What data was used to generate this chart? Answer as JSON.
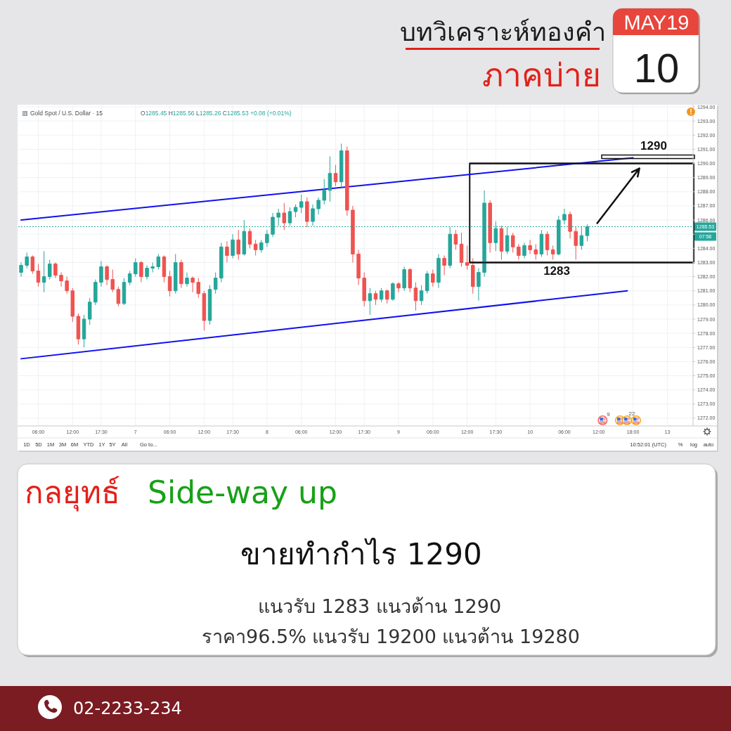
{
  "chart_data": {
    "type": "candlestick",
    "title": "บทวิเคราะห์ทองคำ",
    "subtitle": "ภาคบ่าย",
    "categories": [
      null,
      null,
      null,
      "06:00",
      null,
      null,
      null,
      null,
      null,
      "12:00",
      null,
      null,
      null,
      null,
      "17:30",
      null,
      null,
      null,
      null,
      null,
      "7",
      null,
      null,
      null,
      null,
      null,
      "06:00",
      null,
      null,
      null,
      null,
      null,
      "12:00",
      null,
      null,
      null,
      null,
      "17:30",
      null,
      null,
      null,
      null,
      null,
      "8",
      null,
      null,
      null,
      null,
      null,
      "06:00",
      null,
      null,
      null,
      null,
      null,
      "12:00",
      null,
      null,
      null,
      null,
      "17:30",
      null,
      null,
      null,
      null,
      null,
      "9",
      null,
      null,
      null,
      null,
      null,
      "06:00",
      null,
      null,
      null,
      null,
      null,
      "12:00",
      null,
      null,
      null,
      null,
      "17:30",
      null,
      null,
      null,
      null,
      null,
      "10",
      null,
      null,
      null,
      null,
      null,
      "06:00",
      null,
      null,
      null,
      null,
      null,
      "12:00",
      null,
      null,
      null,
      null,
      null,
      "18:00",
      null,
      null,
      null,
      null,
      null,
      "13",
      null,
      null,
      null,
      null
    ],
    "ohlc": [
      [
        1282.3,
        1283.0,
        1282.0,
        1282.8
      ],
      [
        1282.8,
        1283.7,
        1282.6,
        1283.4
      ],
      [
        1283.4,
        1283.5,
        1282.2,
        1282.4
      ],
      [
        1282.4,
        1282.9,
        1281.3,
        1281.6
      ],
      [
        1281.6,
        1283.8,
        1280.9,
        1282.0
      ],
      [
        1282.0,
        1283.2,
        1281.8,
        1282.9
      ],
      [
        1282.9,
        1283.0,
        1281.9,
        1282.1
      ],
      [
        1282.1,
        1282.3,
        1281.3,
        1281.7
      ],
      [
        1281.7,
        1282.0,
        1280.8,
        1281.0
      ],
      [
        1281.0,
        1281.2,
        1278.8,
        1279.2
      ],
      [
        1279.2,
        1279.4,
        1277.2,
        1277.6
      ],
      [
        1277.6,
        1279.3,
        1277.0,
        1279.0
      ],
      [
        1279.0,
        1280.5,
        1278.6,
        1280.2
      ],
      [
        1280.2,
        1281.8,
        1280.0,
        1281.6
      ],
      [
        1281.6,
        1283.1,
        1281.3,
        1282.7
      ],
      [
        1282.7,
        1282.8,
        1281.4,
        1281.8
      ],
      [
        1281.8,
        1282.5,
        1280.9,
        1281.1
      ],
      [
        1281.1,
        1281.3,
        1279.9,
        1280.1
      ],
      [
        1280.1,
        1281.9,
        1280.0,
        1281.6
      ],
      [
        1281.6,
        1282.4,
        1281.4,
        1282.2
      ],
      [
        1282.2,
        1283.3,
        1282.0,
        1283.0
      ],
      [
        1283.0,
        1283.1,
        1281.6,
        1282.0
      ],
      [
        1282.0,
        1282.8,
        1281.8,
        1282.6
      ],
      [
        1282.6,
        1283.0,
        1282.3,
        1282.7
      ],
      [
        1282.7,
        1283.6,
        1282.5,
        1283.4
      ],
      [
        1283.4,
        1283.5,
        1281.6,
        1282.0
      ],
      [
        1282.0,
        1282.4,
        1280.6,
        1281.0
      ],
      [
        1281.0,
        1283.6,
        1280.8,
        1283.0
      ],
      [
        1283.0,
        1283.2,
        1281.2,
        1281.5
      ],
      [
        1281.5,
        1282.3,
        1281.3,
        1281.9
      ],
      [
        1281.9,
        1282.0,
        1280.9,
        1281.6
      ],
      [
        1281.6,
        1281.9,
        1280.5,
        1280.8
      ],
      [
        1280.8,
        1281.0,
        1278.2,
        1278.9
      ],
      [
        1278.9,
        1281.4,
        1278.6,
        1281.1
      ],
      [
        1281.1,
        1282.3,
        1280.8,
        1281.9
      ],
      [
        1281.9,
        1284.4,
        1281.6,
        1284.1
      ],
      [
        1284.1,
        1284.5,
        1283.0,
        1283.5
      ],
      [
        1283.5,
        1285.0,
        1283.3,
        1284.6
      ],
      [
        1284.6,
        1285.3,
        1283.2,
        1283.6
      ],
      [
        1283.6,
        1286.0,
        1283.5,
        1285.2
      ],
      [
        1285.2,
        1285.4,
        1284.0,
        1284.3
      ],
      [
        1284.3,
        1284.6,
        1283.5,
        1283.9
      ],
      [
        1283.9,
        1284.6,
        1283.7,
        1284.4
      ],
      [
        1284.4,
        1285.3,
        1284.1,
        1285.0
      ],
      [
        1285.0,
        1286.5,
        1284.8,
        1286.2
      ],
      [
        1286.2,
        1286.8,
        1285.6,
        1286.5
      ],
      [
        1286.5,
        1287.2,
        1285.3,
        1285.8
      ],
      [
        1285.8,
        1286.9,
        1285.6,
        1286.6
      ],
      [
        1286.6,
        1287.1,
        1286.2,
        1286.9
      ],
      [
        1286.9,
        1287.8,
        1286.5,
        1287.3
      ],
      [
        1287.3,
        1287.6,
        1285.5,
        1285.9
      ],
      [
        1285.9,
        1287.1,
        1285.6,
        1286.8
      ],
      [
        1286.8,
        1287.6,
        1286.4,
        1287.4
      ],
      [
        1287.4,
        1288.9,
        1287.1,
        1288.1
      ],
      [
        1288.1,
        1290.5,
        1287.3,
        1289.3
      ],
      [
        1289.3,
        1289.9,
        1288.4,
        1288.7
      ],
      [
        1288.7,
        1291.4,
        1288.3,
        1290.9
      ],
      [
        1290.9,
        1291.2,
        1286.3,
        1286.7
      ],
      [
        1286.7,
        1287.0,
        1283.0,
        1283.6
      ],
      [
        1283.6,
        1283.9,
        1281.4,
        1281.9
      ],
      [
        1281.9,
        1282.3,
        1279.9,
        1280.3
      ],
      [
        1280.3,
        1281.2,
        1279.3,
        1280.8
      ],
      [
        1280.8,
        1281.0,
        1280.0,
        1280.4
      ],
      [
        1280.4,
        1281.2,
        1280.2,
        1281.0
      ],
      [
        1281.0,
        1281.1,
        1280.1,
        1280.4
      ],
      [
        1280.4,
        1281.6,
        1280.3,
        1281.5
      ],
      [
        1281.5,
        1281.6,
        1280.9,
        1281.2
      ],
      [
        1281.2,
        1282.7,
        1281.0,
        1282.5
      ],
      [
        1282.5,
        1282.6,
        1280.9,
        1281.2
      ],
      [
        1281.2,
        1281.6,
        1279.6,
        1280.3
      ],
      [
        1280.3,
        1281.4,
        1280.0,
        1281.0
      ],
      [
        1281.0,
        1282.4,
        1280.8,
        1282.2
      ],
      [
        1282.2,
        1282.5,
        1281.3,
        1281.6
      ],
      [
        1281.6,
        1283.6,
        1281.2,
        1283.3
      ],
      [
        1283.3,
        1283.5,
        1282.1,
        1282.8
      ],
      [
        1282.8,
        1285.5,
        1282.6,
        1285.0
      ],
      [
        1285.0,
        1285.3,
        1283.9,
        1284.3
      ],
      [
        1284.3,
        1285.1,
        1282.7,
        1283.0
      ],
      [
        1283.0,
        1284.2,
        1282.5,
        1282.8
      ],
      [
        1282.8,
        1283.3,
        1280.8,
        1281.3
      ],
      [
        1281.3,
        1282.6,
        1280.3,
        1282.3
      ],
      [
        1282.3,
        1288.1,
        1282.0,
        1287.2
      ],
      [
        1287.2,
        1287.4,
        1283.7,
        1284.4
      ],
      [
        1284.4,
        1285.9,
        1283.8,
        1285.4
      ],
      [
        1285.4,
        1285.6,
        1283.2,
        1283.8
      ],
      [
        1283.8,
        1285.5,
        1283.6,
        1284.9
      ],
      [
        1284.9,
        1285.1,
        1283.7,
        1284.1
      ],
      [
        1284.1,
        1284.3,
        1283.2,
        1283.5
      ],
      [
        1283.5,
        1284.4,
        1283.3,
        1284.2
      ],
      [
        1284.2,
        1284.6,
        1283.6,
        1283.9
      ],
      [
        1283.9,
        1284.3,
        1283.2,
        1283.6
      ],
      [
        1283.6,
        1285.3,
        1283.4,
        1285.0
      ],
      [
        1285.0,
        1285.2,
        1283.5,
        1283.9
      ],
      [
        1283.9,
        1284.2,
        1283.2,
        1283.6
      ],
      [
        1283.6,
        1286.3,
        1283.5,
        1286.0
      ],
      [
        1286.0,
        1286.8,
        1285.7,
        1286.4
      ],
      [
        1286.4,
        1286.6,
        1284.7,
        1285.2
      ],
      [
        1285.2,
        1285.5,
        1283.2,
        1284.2
      ],
      [
        1284.2,
        1285.5,
        1283.9,
        1284.9
      ],
      [
        1284.9,
        1285.7,
        1284.5,
        1285.53
      ],
      null,
      null,
      null,
      null,
      null,
      null,
      null,
      null,
      null,
      null,
      null,
      null,
      null,
      null,
      null,
      null,
      null,
      null
    ],
    "colors": [
      "#26a69a",
      "#26a69a",
      "#ef5350",
      "#ef5350",
      "#26a69a",
      "#26a69a",
      "#ef5350",
      "#ef5350",
      "#ef5350",
      "#ef5350",
      "#ef5350",
      "#26a69a",
      "#26a69a",
      "#26a69a",
      "#26a69a",
      "#ef5350",
      "#ef5350",
      "#ef5350",
      "#26a69a",
      "#26a69a",
      "#26a69a",
      "#ef5350",
      "#26a69a",
      "#26a69a",
      "#26a69a",
      "#ef5350",
      "#ef5350",
      "#26a69a",
      "#ef5350",
      "#26a69a",
      "#ef5350",
      "#ef5350",
      "#ef5350",
      "#26a69a",
      "#26a69a",
      "#26a69a",
      "#ef5350",
      "#26a69a",
      "#ef5350",
      "#26a69a",
      "#ef5350",
      "#ef5350",
      "#26a69a",
      "#26a69a",
      "#26a69a",
      "#26a69a",
      "#ef5350",
      "#26a69a",
      "#26a69a",
      "#26a69a",
      "#ef5350",
      "#26a69a",
      "#26a69a",
      "#26a69a",
      "#26a69a",
      "#ef5350",
      "#26a69a",
      "#ef5350",
      "#ef5350",
      "#ef5350",
      "#ef5350",
      "#26a69a",
      "#ef5350",
      "#26a69a",
      "#ef5350",
      "#26a69a",
      "#ef5350",
      "#26a69a",
      "#ef5350",
      "#ef5350",
      "#26a69a",
      "#26a69a",
      "#ef5350",
      "#26a69a",
      "#ef5350",
      "#26a69a",
      "#ef5350",
      "#ef5350",
      "#ef5350",
      "#ef5350",
      "#26a69a",
      "#26a69a",
      "#ef5350",
      "#26a69a",
      "#ef5350",
      "#26a69a",
      "#ef5350",
      "#ef5350",
      "#26a69a",
      "#ef5350",
      "#ef5350",
      "#26a69a",
      "#ef5350",
      "#ef5350",
      "#26a69a",
      "#26a69a",
      "#ef5350",
      "#ef5350",
      "#26a69a",
      "#26a69a",
      null,
      null,
      null,
      null,
      null,
      null,
      null,
      null,
      null,
      null,
      null,
      null,
      null,
      null,
      null,
      null,
      null,
      null
    ],
    "series": [
      {
        "type": "line",
        "color": "#1010f0",
        "values": [
          1286.0,
          null,
          null,
          null,
          null,
          null,
          null,
          null,
          null,
          null,
          null,
          null,
          null,
          null,
          null,
          null,
          null,
          null,
          null,
          null,
          null,
          null,
          null,
          null,
          null,
          null,
          null,
          null,
          null,
          null,
          null,
          null,
          null,
          null,
          null,
          null,
          null,
          null,
          null,
          null,
          null,
          null,
          null,
          null,
          null,
          null,
          null,
          null,
          null,
          null,
          null,
          null,
          null,
          null,
          null,
          null,
          null,
          null,
          null,
          null,
          null,
          null,
          null,
          null,
          null,
          null,
          null,
          null,
          null,
          null,
          null,
          null,
          null,
          null,
          null,
          null,
          null,
          null,
          null,
          null,
          null,
          null,
          null,
          null,
          null,
          null,
          null,
          null,
          null,
          null,
          null,
          null,
          null,
          null,
          null,
          null,
          null,
          null,
          null,
          null,
          null,
          null,
          null,
          null,
          null,
          null,
          null,
          1290.4,
          null,
          null,
          null,
          null,
          null,
          null,
          null,
          null,
          null,
          null
        ]
      },
      {
        "type": "line",
        "color": "#1010f0",
        "values": [
          1276.2,
          null,
          null,
          null,
          null,
          null,
          null,
          null,
          null,
          null,
          null,
          null,
          null,
          null,
          null,
          null,
          null,
          null,
          null,
          null,
          null,
          null,
          null,
          null,
          null,
          null,
          null,
          null,
          null,
          null,
          null,
          null,
          null,
          null,
          null,
          null,
          null,
          null,
          null,
          null,
          null,
          null,
          null,
          null,
          null,
          null,
          null,
          null,
          null,
          null,
          null,
          null,
          null,
          null,
          null,
          null,
          null,
          null,
          null,
          null,
          null,
          null,
          null,
          null,
          null,
          null,
          null,
          null,
          null,
          null,
          null,
          null,
          null,
          null,
          null,
          null,
          null,
          null,
          null,
          null,
          null,
          null,
          null,
          null,
          null,
          null,
          null,
          null,
          null,
          null,
          null,
          null,
          null,
          null,
          null,
          null,
          null,
          null,
          null,
          null,
          null,
          null,
          null,
          null,
          null,
          null,
          1281.0,
          null,
          null,
          null,
          null,
          null,
          null,
          null,
          null,
          null,
          null,
          null
        ]
      }
    ],
    "ylim": [
      1271.45,
      1294.1
    ],
    "yticks": [
      {
        "value": 1272,
        "label": "1272.00"
      },
      {
        "value": 1273,
        "label": "1273.00"
      },
      {
        "value": 1274,
        "label": "1274.00"
      },
      {
        "value": 1275,
        "label": "1275.00"
      },
      {
        "value": 1276,
        "label": "1276.00"
      },
      {
        "value": 1277,
        "label": "1277.00"
      },
      {
        "value": 1278,
        "label": "1278.00"
      },
      {
        "value": 1279,
        "label": "1279.00"
      },
      {
        "value": 1280,
        "label": "1280.00"
      },
      {
        "value": 1281,
        "label": "1281.00"
      },
      {
        "value": 1282,
        "label": "1282.00"
      },
      {
        "value": 1283,
        "label": "1283.00"
      },
      {
        "value": 1284,
        "label": "1284.00"
      },
      {
        "value": 1285,
        "label": null
      },
      {
        "value": 1286,
        "label": "1286.00"
      },
      {
        "value": 1287,
        "label": "1287.00"
      },
      {
        "value": 1288,
        "label": "1288.00"
      },
      {
        "value": 1289,
        "label": "1289.00"
      },
      {
        "value": 1290,
        "label": "1290.00"
      },
      {
        "value": 1291,
        "label": "1291.00"
      },
      {
        "value": 1292,
        "label": "1292.00"
      },
      {
        "value": 1293,
        "label": "1293.00"
      },
      {
        "value": 1294,
        "label": "1294.00"
      }
    ],
    "grid": true,
    "ref_lines": [
      {
        "axis": "y",
        "value": 1285.53,
        "label": "1285.53",
        "color": "#26a69a",
        "line_style": "dotted"
      },
      {
        "axis": "y",
        "value": 1290,
        "label": "1290",
        "color": "#111111"
      },
      {
        "axis": "y",
        "value": 1283,
        "label": "1283",
        "color": "#111111"
      }
    ],
    "annotations": [
      "MAY19",
      "10",
      "Gold Spot / U.S. Dollar · 15",
      "O1285.45 H1285.56 L1285.26 C1285.53 +0.08 (+0.01%)",
      "07:58",
      "9",
      "22",
      "1D",
      "5D",
      "1M",
      "3M",
      "6M",
      "YTD",
      "1Y",
      "5Y",
      "All",
      "Go to...",
      "10:52:01 (UTC)",
      "%",
      "log",
      "auto",
      "กลยุทธ์",
      "Side-way up",
      "ขายทำกำไร 1290",
      "แนวรับ 1283 แนวต้าน 1290",
      "ราคา96.5% แนวรับ 19200 แนวต้าน 19280",
      "02-2233-234"
    ]
  }
}
